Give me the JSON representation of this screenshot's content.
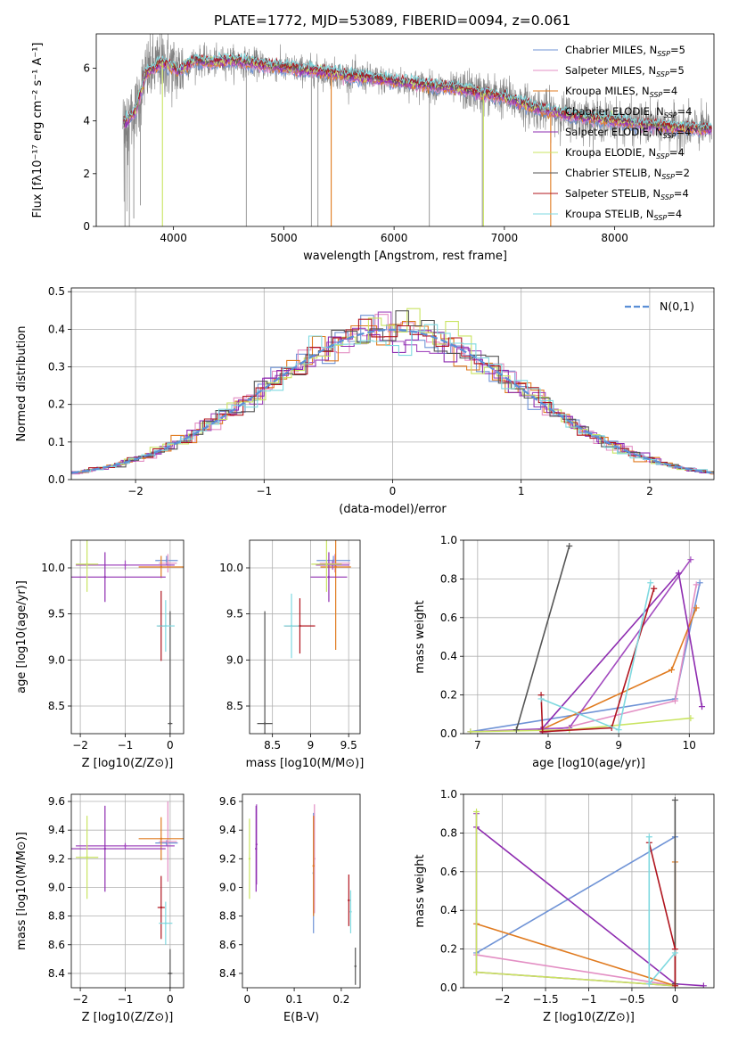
{
  "colors": {
    "Chabrier MILES": "#6f93d6",
    "Salpeter MILES": "#e38fc4",
    "Kroupa MILES": "#e07b20",
    "Chabrier ELODIE": "#a34bbf",
    "Salpeter ELODIE": "#8e2cb0",
    "Kroupa ELODIE": "#c9e461",
    "Chabrier STELIB": "#555555",
    "Salpeter STELIB": "#b0141e",
    "Kroupa STELIB": "#7fd9e0",
    "data": "#808080",
    "gaussian": "#5b8fd6"
  },
  "chart_data": [
    {
      "id": "spectrum",
      "type": "line",
      "title": "PLATE=1772, MJD=53089, FIBERID=0094, z=0.061",
      "xlabel": "wavelength [Angstrom, rest frame]",
      "ylabel": "Flux [fλ10⁻¹⁷ erg cm⁻² s⁻¹ A⁻¹]",
      "xlim": [
        3300,
        8900
      ],
      "ylim": [
        0,
        7.3
      ],
      "xticks": [
        4000,
        5000,
        6000,
        7000,
        8000
      ],
      "yticks": [
        0,
        2,
        4,
        6
      ],
      "grid": false,
      "legend_position": "top-right",
      "legend": [
        {
          "name": "Chabrier MILES",
          "nssp": "5"
        },
        {
          "name": "Salpeter MILES",
          "nssp": "5"
        },
        {
          "name": "Kroupa MILES",
          "nssp": "4"
        },
        {
          "name": "Chabrier ELODIE",
          "nssp": "4"
        },
        {
          "name": "Salpeter ELODIE",
          "nssp": "4"
        },
        {
          "name": "Kroupa ELODIE",
          "nssp": "4"
        },
        {
          "name": "Chabrier STELIB",
          "nssp": "2"
        },
        {
          "name": "Salpeter STELIB",
          "nssp": "4"
        },
        {
          "name": "Kroupa STELIB",
          "nssp": "4"
        }
      ],
      "continuum": {
        "x": [
          3550,
          3650,
          3750,
          3900,
          4050,
          4200,
          4350,
          4500,
          4700,
          5000,
          5300,
          5600,
          6000,
          6300,
          6600,
          7000,
          7200,
          7400,
          7600,
          8000,
          8400,
          8750
        ],
        "y": [
          3.9,
          4.3,
          5.8,
          6.2,
          5.9,
          6.3,
          6.2,
          6.3,
          6.2,
          6.0,
          5.9,
          5.7,
          5.5,
          5.35,
          5.2,
          4.9,
          4.6,
          4.35,
          4.2,
          4.0,
          3.8,
          3.7
        ]
      },
      "noise_amplitude": 0.6,
      "data_spikes": [
        {
          "x": 3560,
          "y": 0.0
        },
        {
          "x": 3600,
          "y": 0.0
        },
        {
          "x": 3640,
          "y": 0.3
        },
        {
          "x": 3700,
          "y": 0.8
        },
        {
          "x": 4660,
          "y": 0.0
        },
        {
          "x": 5250,
          "y": 0.0
        },
        {
          "x": 5310,
          "y": 0.0
        },
        {
          "x": 6320,
          "y": 0.0
        },
        {
          "x": 6800,
          "y": 0.0
        }
      ],
      "model_spikes": [
        {
          "model": "Kroupa ELODIE",
          "x": 3900,
          "y": 0.0
        },
        {
          "model": "Kroupa MILES",
          "x": 5430,
          "y": 0.0
        },
        {
          "model": "Kroupa ELODIE",
          "x": 6810,
          "y": 0.0
        },
        {
          "model": "Kroupa MILES",
          "x": 7420,
          "y": 0.0
        }
      ]
    },
    {
      "id": "residuals",
      "type": "histogram",
      "xlabel": "(data-model)/error",
      "ylabel": "Normed distribution",
      "xlim": [
        -2.5,
        2.5
      ],
      "ylim": [
        0,
        0.51
      ],
      "xticks": [
        -2,
        -1,
        0,
        1,
        2
      ],
      "yticks": [
        0.0,
        0.1,
        0.2,
        0.3,
        0.4,
        0.5
      ],
      "grid": true,
      "bin_width": 0.1,
      "reference_curve": {
        "name": "N(0,1)",
        "style": "dashed"
      },
      "legend_position": "top-right"
    },
    {
      "id": "age_vs_Z",
      "type": "scatter",
      "xlabel": "Z [log10(Z/Z⊙)]",
      "ylabel": "age [log10(age/yr)]",
      "xlim": [
        -2.2,
        0.3
      ],
      "ylim": [
        8.2,
        10.3
      ],
      "xticks": [
        -2,
        -1,
        0
      ],
      "yticks": [
        8.5,
        9.0,
        9.5,
        10.0
      ],
      "grid": true,
      "points": [
        {
          "model": "Chabrier MILES",
          "x": -0.08,
          "y": 10.08,
          "xerr": 0.25,
          "yerr": 0.05
        },
        {
          "model": "Salpeter MILES",
          "x": -0.05,
          "y": 10.05,
          "xerr": 0.2,
          "yerr": 0.1
        },
        {
          "model": "Kroupa MILES",
          "x": -0.2,
          "y": 10.01,
          "xerr": 0.5,
          "yerr": 0.12
        },
        {
          "model": "Chabrier ELODIE",
          "x": -1.0,
          "y": 10.03,
          "xerr": 1.1,
          "yerr": 0.05
        },
        {
          "model": "Salpeter ELODIE",
          "x": -1.45,
          "y": 9.9,
          "xerr": 1.35,
          "yerr": 0.27
        },
        {
          "model": "Kroupa ELODIE",
          "x": -1.85,
          "y": 10.04,
          "xerr": 0.25,
          "yerr": 0.3
        },
        {
          "model": "Chabrier STELIB",
          "x": 0.0,
          "y": 8.31,
          "xerr": 0.05,
          "yerr": 1.22
        },
        {
          "model": "Salpeter STELIB",
          "x": -0.2,
          "y": 9.37,
          "xerr": 0.08,
          "yerr": 0.38
        },
        {
          "model": "Kroupa STELIB",
          "x": -0.1,
          "y": 9.37,
          "xerr": 0.2,
          "yerr": 0.28
        }
      ]
    },
    {
      "id": "age_vs_mass",
      "type": "scatter",
      "xlabel": "mass [log10(M/M⊙)]",
      "ylabel": "",
      "xlim": [
        8.2,
        9.65
      ],
      "ylim": [
        8.2,
        10.3
      ],
      "xticks": [
        8.5,
        9.0,
        9.5
      ],
      "yticks": [
        8.5,
        9.0,
        9.5,
        10.0
      ],
      "grid": true,
      "points": [
        {
          "model": "Chabrier MILES",
          "x": 9.3,
          "y": 10.08,
          "xerr": 0.22,
          "yerr": 0.05
        },
        {
          "model": "Salpeter MILES",
          "x": 9.32,
          "y": 10.05,
          "xerr": 0.2,
          "yerr": 0.1
        },
        {
          "model": "Kroupa MILES",
          "x": 9.33,
          "y": 10.01,
          "xerr": 0.2,
          "yerr": 0.9
        },
        {
          "model": "Chabrier ELODIE",
          "x": 9.29,
          "y": 10.03,
          "xerr": 0.22,
          "yerr": 0.05
        },
        {
          "model": "Salpeter ELODIE",
          "x": 9.24,
          "y": 9.9,
          "xerr": 0.24,
          "yerr": 0.27
        },
        {
          "model": "Kroupa ELODIE",
          "x": 9.21,
          "y": 10.04,
          "xerr": 0.2,
          "yerr": 0.3
        },
        {
          "model": "Chabrier STELIB",
          "x": 8.4,
          "y": 8.31,
          "xerr": 0.1,
          "yerr": 1.22
        },
        {
          "model": "Salpeter STELIB",
          "x": 8.86,
          "y": 9.37,
          "xerr": 0.2,
          "yerr": 0.3
        },
        {
          "model": "Kroupa STELIB",
          "x": 8.75,
          "y": 9.37,
          "xerr": 0.1,
          "yerr": 0.35
        }
      ]
    },
    {
      "id": "weight_vs_age",
      "type": "line",
      "xlabel": "age [log10(age/yr)]",
      "ylabel": "mass weight",
      "xlim": [
        6.8,
        10.35
      ],
      "ylim": [
        0,
        1.0
      ],
      "xticks": [
        7,
        8,
        9,
        10
      ],
      "yticks": [
        0.0,
        0.2,
        0.4,
        0.6,
        0.8,
        1.0
      ],
      "grid": true,
      "series": [
        {
          "model": "Chabrier MILES",
          "x": [
            6.9,
            9.8,
            10.15
          ],
          "y": [
            0.01,
            0.18,
            0.78
          ]
        },
        {
          "model": "Salpeter MILES",
          "x": [
            7.9,
            9.8,
            10.1
          ],
          "y": [
            0.0,
            0.17,
            0.77
          ]
        },
        {
          "model": "Kroupa MILES",
          "x": [
            7.9,
            9.75,
            10.1
          ],
          "y": [
            0.02,
            0.33,
            0.65
          ]
        },
        {
          "model": "Chabrier ELODIE",
          "x": [
            6.9,
            8.3,
            10.02
          ],
          "y": [
            0.01,
            0.03,
            0.9
          ]
        },
        {
          "model": "Salpeter ELODIE",
          "x": [
            7.9,
            9.85,
            10.18
          ],
          "y": [
            0.02,
            0.83,
            0.14
          ]
        },
        {
          "model": "Kroupa ELODIE",
          "x": [
            6.9,
            8.3,
            10.02
          ],
          "y": [
            0.01,
            0.02,
            0.08
          ]
        },
        {
          "model": "Chabrier STELIB",
          "x": [
            7.55,
            8.3
          ],
          "y": [
            0.02,
            0.97
          ]
        },
        {
          "model": "Salpeter STELIB",
          "x": [
            7.9,
            7.92,
            8.9,
            9.5
          ],
          "y": [
            0.2,
            0.01,
            0.03,
            0.75
          ]
        },
        {
          "model": "Kroupa STELIB",
          "x": [
            7.9,
            9.0,
            9.45
          ],
          "y": [
            0.18,
            0.02,
            0.78
          ]
        }
      ]
    },
    {
      "id": "mass_vs_Z",
      "type": "scatter",
      "xlabel": "Z [log10(Z/Z⊙)]",
      "ylabel": "mass [log10(M/M⊙)]",
      "xlim": [
        -2.2,
        0.3
      ],
      "ylim": [
        8.3,
        9.65
      ],
      "xticks": [
        -2,
        -1,
        0
      ],
      "yticks": [
        8.4,
        8.6,
        8.8,
        9.0,
        9.2,
        9.4,
        9.6
      ],
      "grid": true,
      "points": [
        {
          "model": "Chabrier MILES",
          "x": -0.08,
          "y": 9.31,
          "xerr": 0.25,
          "yerr": 0.02
        },
        {
          "model": "Salpeter MILES",
          "x": -0.05,
          "y": 9.32,
          "xerr": 0.2,
          "yerr": 0.28
        },
        {
          "model": "Kroupa MILES",
          "x": -0.2,
          "y": 9.34,
          "xerr": 0.5,
          "yerr": 0.15
        },
        {
          "model": "Chabrier ELODIE",
          "x": -1.0,
          "y": 9.29,
          "xerr": 1.1,
          "yerr": 0.02
        },
        {
          "model": "Salpeter ELODIE",
          "x": -1.45,
          "y": 9.27,
          "xerr": 1.35,
          "yerr": 0.3
        },
        {
          "model": "Kroupa ELODIE",
          "x": -1.85,
          "y": 9.21,
          "xerr": 0.25,
          "yerr": 0.29
        },
        {
          "model": "Chabrier STELIB",
          "x": 0.0,
          "y": 8.4,
          "xerr": 0.05,
          "yerr": 0.17
        },
        {
          "model": "Salpeter STELIB",
          "x": -0.2,
          "y": 8.86,
          "xerr": 0.08,
          "yerr": 0.22
        },
        {
          "model": "Kroupa STELIB",
          "x": -0.1,
          "y": 8.75,
          "xerr": 0.15,
          "yerr": 0.15
        }
      ]
    },
    {
      "id": "mass_vs_ebv",
      "type": "scatter",
      "xlabel": "E(B-V)",
      "ylabel": "",
      "xlim": [
        -0.01,
        0.24
      ],
      "ylim": [
        8.3,
        9.65
      ],
      "xticks": [
        0.0,
        0.1,
        0.2
      ],
      "yticks": [
        8.4,
        8.6,
        8.8,
        9.0,
        9.2,
        9.4,
        9.6
      ],
      "grid": false,
      "points": [
        {
          "model": "Chabrier MILES",
          "x": 0.141,
          "y": 9.1,
          "yerr": 0.42
        },
        {
          "model": "Salpeter MILES",
          "x": 0.143,
          "y": 9.2,
          "yerr": 0.38
        },
        {
          "model": "Kroupa MILES",
          "x": 0.141,
          "y": 9.15,
          "yerr": 0.35
        },
        {
          "model": "Chabrier ELODIE",
          "x": 0.02,
          "y": 9.3,
          "yerr": 0.28
        },
        {
          "model": "Salpeter ELODIE",
          "x": 0.019,
          "y": 9.27,
          "yerr": 0.3
        },
        {
          "model": "Kroupa ELODIE",
          "x": 0.005,
          "y": 9.2,
          "yerr": 0.28
        },
        {
          "model": "Chabrier STELIB",
          "x": 0.23,
          "y": 8.45,
          "yerr": 0.13
        },
        {
          "model": "Salpeter STELIB",
          "x": 0.216,
          "y": 8.91,
          "yerr": 0.18
        },
        {
          "model": "Kroupa STELIB",
          "x": 0.22,
          "y": 8.83,
          "yerr": 0.15
        }
      ]
    },
    {
      "id": "weight_vs_Z",
      "type": "line",
      "xlabel": "Z [log10(Z/Z⊙)]",
      "ylabel": "mass weight",
      "xlim": [
        -2.45,
        0.45
      ],
      "ylim": [
        0,
        1.0
      ],
      "xticks": [
        -2.0,
        -1.5,
        -1.0,
        -0.5,
        0.0
      ],
      "yticks": [
        0.0,
        0.2,
        0.4,
        0.6,
        0.8,
        1.0
      ],
      "grid": true,
      "series": [
        {
          "model": "Chabrier MILES",
          "x": [
            -2.3,
            0.0
          ],
          "y": [
            0.18,
            0.78
          ]
        },
        {
          "model": "Salpeter MILES",
          "x": [
            -2.3,
            0.0
          ],
          "y": [
            0.17,
            0.01
          ]
        },
        {
          "model": "Kroupa MILES",
          "x": [
            -2.3,
            0.0,
            0.0
          ],
          "y": [
            0.33,
            0.01,
            0.65
          ]
        },
        {
          "model": "Chabrier ELODIE",
          "x": [
            -2.3,
            -2.3,
            0.0
          ],
          "y": [
            0.9,
            0.08,
            0.01
          ]
        },
        {
          "model": "Salpeter ELODIE",
          "x": [
            -2.3,
            0.0,
            0.33
          ],
          "y": [
            0.83,
            0.02,
            0.01
          ]
        },
        {
          "model": "Kroupa ELODIE",
          "x": [
            -2.3,
            -2.3,
            0.0
          ],
          "y": [
            0.91,
            0.08,
            0.01
          ]
        },
        {
          "model": "Chabrier STELIB",
          "x": [
            0.0,
            0.0
          ],
          "y": [
            0.02,
            0.97
          ]
        },
        {
          "model": "Salpeter STELIB",
          "x": [
            -0.3,
            0.0,
            0.0
          ],
          "y": [
            0.75,
            0.2,
            0.01
          ]
        },
        {
          "model": "Kroupa STELIB",
          "x": [
            -0.3,
            -0.3,
            0.0
          ],
          "y": [
            0.78,
            0.02,
            0.18
          ]
        }
      ]
    }
  ]
}
